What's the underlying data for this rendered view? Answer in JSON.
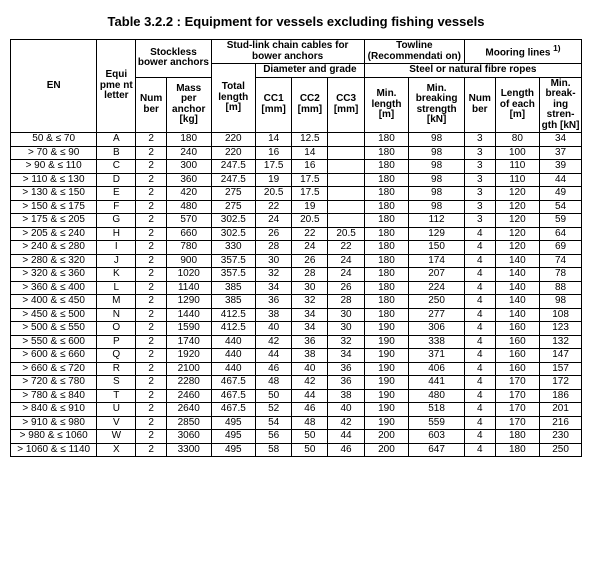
{
  "title": "Table 3.2.2 : Equipment for vessels excluding fishing vessels",
  "footnote_marker": "1)",
  "headers": {
    "en": "EN",
    "equip_letter": "Equi pme nt letter",
    "stockless": "Stockless bower anchors",
    "studlink": "Stud-link chain cables for bower anchors",
    "towline": "Towline (Recommendati on)",
    "mooring": "Mooring lines",
    "diam_grade": "Diameter and grade",
    "steel_fibre": "Steel or natural fibre ropes",
    "number": "Num ber",
    "mass": "Mass per anchor [kg]",
    "total_len": "Total length [m]",
    "cc1": "CC1 [mm]",
    "cc2": "CC2 [mm]",
    "cc3": "CC3 [mm]",
    "min_len": "Min. length [m]",
    "min_brk": "Min. breaking strength [kN]",
    "len_each": "Length of each [m]",
    "min_brk2": "Min. break- ing stren- gth [kN]"
  },
  "rows": [
    {
      "en": "50 & ≤ 70",
      "l": "A",
      "n1": "2",
      "mass": "180",
      "tl": "220",
      "c1": "14",
      "c2": "12.5",
      "c3": "",
      "ml": "180",
      "mb": "98",
      "n2": "3",
      "le": "80",
      "b2": "34"
    },
    {
      "en": "> 70 & ≤ 90",
      "l": "B",
      "n1": "2",
      "mass": "240",
      "tl": "220",
      "c1": "16",
      "c2": "14",
      "c3": "",
      "ml": "180",
      "mb": "98",
      "n2": "3",
      "le": "100",
      "b2": "37"
    },
    {
      "en": "> 90 & ≤ 110",
      "l": "C",
      "n1": "2",
      "mass": "300",
      "tl": "247.5",
      "c1": "17.5",
      "c2": "16",
      "c3": "",
      "ml": "180",
      "mb": "98",
      "n2": "3",
      "le": "110",
      "b2": "39"
    },
    {
      "en": "> 110 & ≤ 130",
      "l": "D",
      "n1": "2",
      "mass": "360",
      "tl": "247.5",
      "c1": "19",
      "c2": "17.5",
      "c3": "",
      "ml": "180",
      "mb": "98",
      "n2": "3",
      "le": "110",
      "b2": "44"
    },
    {
      "en": "> 130 & ≤ 150",
      "l": "E",
      "n1": "2",
      "mass": "420",
      "tl": "275",
      "c1": "20.5",
      "c2": "17.5",
      "c3": "",
      "ml": "180",
      "mb": "98",
      "n2": "3",
      "le": "120",
      "b2": "49"
    },
    {
      "en": "> 150 & ≤ 175",
      "l": "F",
      "n1": "2",
      "mass": "480",
      "tl": "275",
      "c1": "22",
      "c2": "19",
      "c3": "",
      "ml": "180",
      "mb": "98",
      "n2": "3",
      "le": "120",
      "b2": "54"
    },
    {
      "en": "> 175 & ≤ 205",
      "l": "G",
      "n1": "2",
      "mass": "570",
      "tl": "302.5",
      "c1": "24",
      "c2": "20.5",
      "c3": "",
      "ml": "180",
      "mb": "112",
      "n2": "3",
      "le": "120",
      "b2": "59"
    },
    {
      "en": "> 205 & ≤ 240",
      "l": "H",
      "n1": "2",
      "mass": "660",
      "tl": "302.5",
      "c1": "26",
      "c2": "22",
      "c3": "20.5",
      "ml": "180",
      "mb": "129",
      "n2": "4",
      "le": "120",
      "b2": "64"
    },
    {
      "en": "> 240 & ≤ 280",
      "l": "I",
      "n1": "2",
      "mass": "780",
      "tl": "330",
      "c1": "28",
      "c2": "24",
      "c3": "22",
      "ml": "180",
      "mb": "150",
      "n2": "4",
      "le": "120",
      "b2": "69"
    },
    {
      "en": "> 280 & ≤ 320",
      "l": "J",
      "n1": "2",
      "mass": "900",
      "tl": "357.5",
      "c1": "30",
      "c2": "26",
      "c3": "24",
      "ml": "180",
      "mb": "174",
      "n2": "4",
      "le": "140",
      "b2": "74"
    },
    {
      "en": "> 320 & ≤ 360",
      "l": "K",
      "n1": "2",
      "mass": "1020",
      "tl": "357.5",
      "c1": "32",
      "c2": "28",
      "c3": "24",
      "ml": "180",
      "mb": "207",
      "n2": "4",
      "le": "140",
      "b2": "78"
    },
    {
      "en": "> 360 & ≤ 400",
      "l": "L",
      "n1": "2",
      "mass": "1140",
      "tl": "385",
      "c1": "34",
      "c2": "30",
      "c3": "26",
      "ml": "180",
      "mb": "224",
      "n2": "4",
      "le": "140",
      "b2": "88"
    },
    {
      "en": "> 400 & ≤ 450",
      "l": "M",
      "n1": "2",
      "mass": "1290",
      "tl": "385",
      "c1": "36",
      "c2": "32",
      "c3": "28",
      "ml": "180",
      "mb": "250",
      "n2": "4",
      "le": "140",
      "b2": "98"
    },
    {
      "en": "> 450 & ≤ 500",
      "l": "N",
      "n1": "2",
      "mass": "1440",
      "tl": "412.5",
      "c1": "38",
      "c2": "34",
      "c3": "30",
      "ml": "180",
      "mb": "277",
      "n2": "4",
      "le": "140",
      "b2": "108"
    },
    {
      "en": "> 500 & ≤ 550",
      "l": "O",
      "n1": "2",
      "mass": "1590",
      "tl": "412.5",
      "c1": "40",
      "c2": "34",
      "c3": "30",
      "ml": "190",
      "mb": "306",
      "n2": "4",
      "le": "160",
      "b2": "123"
    },
    {
      "en": "> 550 & ≤ 600",
      "l": "P",
      "n1": "2",
      "mass": "1740",
      "tl": "440",
      "c1": "42",
      "c2": "36",
      "c3": "32",
      "ml": "190",
      "mb": "338",
      "n2": "4",
      "le": "160",
      "b2": "132"
    },
    {
      "en": "> 600 & ≤ 660",
      "l": "Q",
      "n1": "2",
      "mass": "1920",
      "tl": "440",
      "c1": "44",
      "c2": "38",
      "c3": "34",
      "ml": "190",
      "mb": "371",
      "n2": "4",
      "le": "160",
      "b2": "147"
    },
    {
      "en": "> 660 & ≤ 720",
      "l": "R",
      "n1": "2",
      "mass": "2100",
      "tl": "440",
      "c1": "46",
      "c2": "40",
      "c3": "36",
      "ml": "190",
      "mb": "406",
      "n2": "4",
      "le": "160",
      "b2": "157"
    },
    {
      "en": "> 720 & ≤ 780",
      "l": "S",
      "n1": "2",
      "mass": "2280",
      "tl": "467.5",
      "c1": "48",
      "c2": "42",
      "c3": "36",
      "ml": "190",
      "mb": "441",
      "n2": "4",
      "le": "170",
      "b2": "172"
    },
    {
      "en": "> 780 & ≤ 840",
      "l": "T",
      "n1": "2",
      "mass": "2460",
      "tl": "467.5",
      "c1": "50",
      "c2": "44",
      "c3": "38",
      "ml": "190",
      "mb": "480",
      "n2": "4",
      "le": "170",
      "b2": "186"
    },
    {
      "en": "> 840 & ≤ 910",
      "l": "U",
      "n1": "2",
      "mass": "2640",
      "tl": "467.5",
      "c1": "52",
      "c2": "46",
      "c3": "40",
      "ml": "190",
      "mb": "518",
      "n2": "4",
      "le": "170",
      "b2": "201"
    },
    {
      "en": "> 910 & ≤ 980",
      "l": "V",
      "n1": "2",
      "mass": "2850",
      "tl": "495",
      "c1": "54",
      "c2": "48",
      "c3": "42",
      "ml": "190",
      "mb": "559",
      "n2": "4",
      "le": "170",
      "b2": "216"
    },
    {
      "en": "> 980 & ≤ 1060",
      "l": "W",
      "n1": "2",
      "mass": "3060",
      "tl": "495",
      "c1": "56",
      "c2": "50",
      "c3": "44",
      "ml": "200",
      "mb": "603",
      "n2": "4",
      "le": "180",
      "b2": "230"
    },
    {
      "en": "> 1060 & ≤ 1140",
      "l": "X",
      "n1": "2",
      "mass": "3300",
      "tl": "495",
      "c1": "58",
      "c2": "50",
      "c3": "46",
      "ml": "200",
      "mb": "647",
      "n2": "4",
      "le": "180",
      "b2": "250"
    }
  ]
}
